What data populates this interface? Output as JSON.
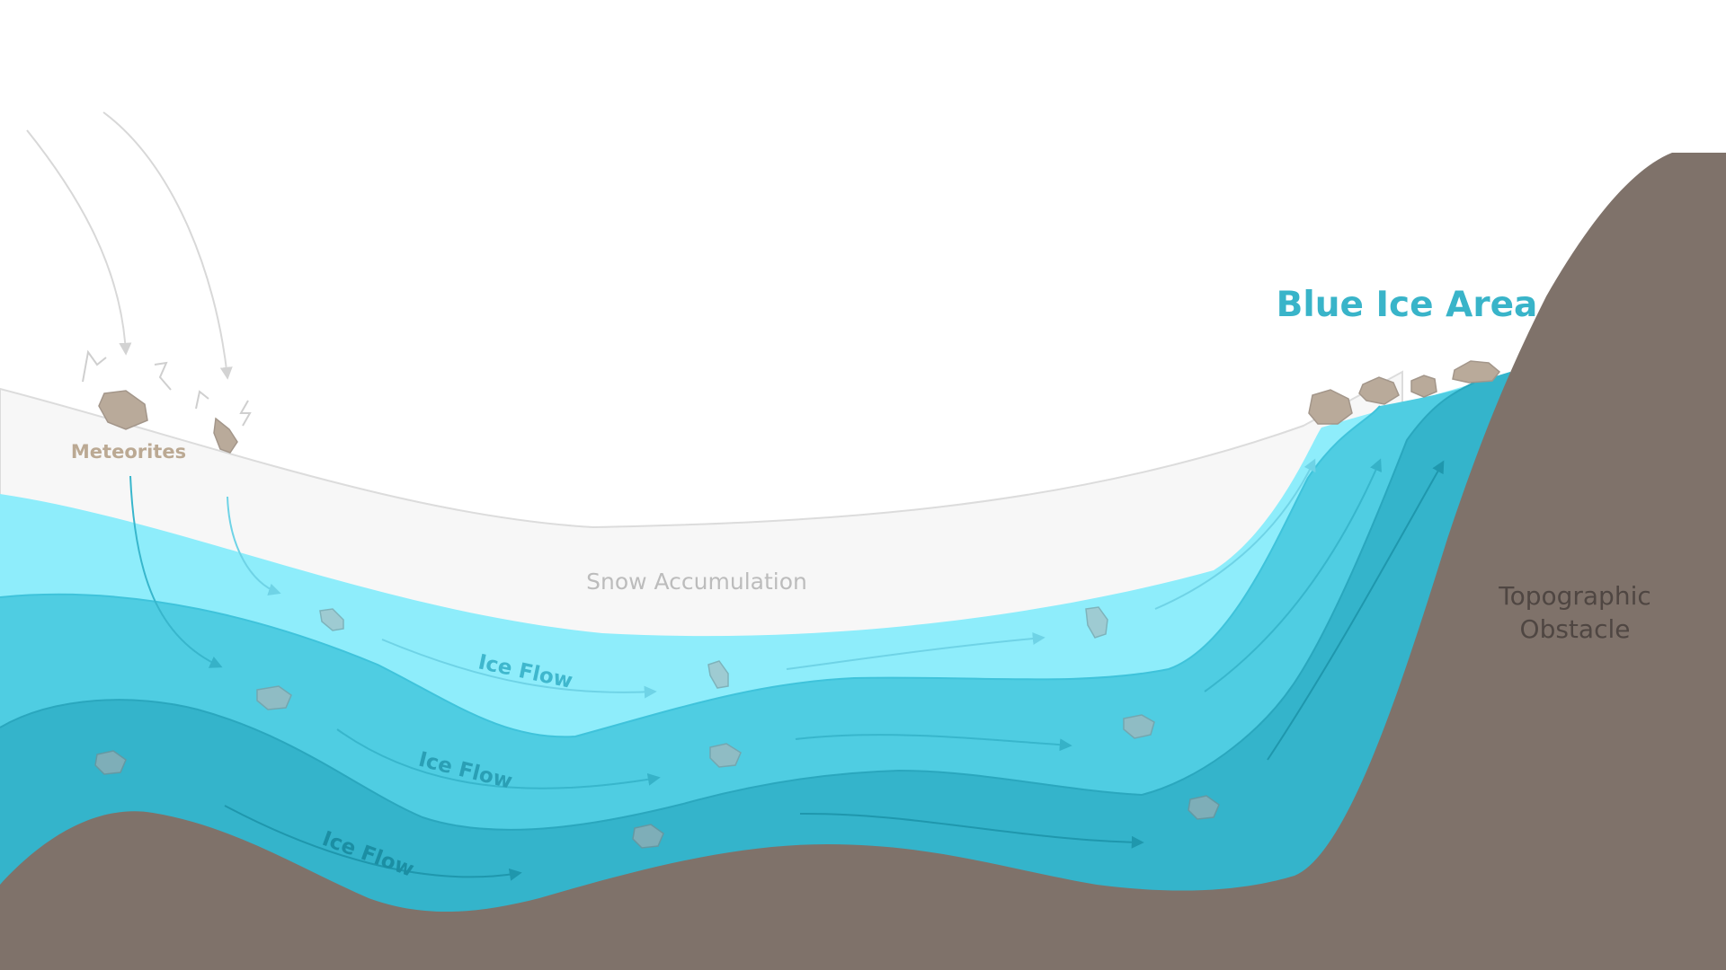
{
  "labels": {
    "meteorites": "Meteorites",
    "snow_accumulation": "Snow Accumulation",
    "ice_flow_1": "Ice Flow",
    "ice_flow_2": "Ice Flow",
    "ice_flow_3": "Ice Flow",
    "blue_ice_area": "Blue Ice Area",
    "topographic_obstacle_line1": "Topographic",
    "topographic_obstacle_line2": "Obstacle"
  },
  "colors": {
    "snow": "#f7f7f7",
    "ice_light": "#8eedfb",
    "ice_mid": "#4fcde2",
    "ice_deep": "#34b4cb",
    "rock": "#7f726a",
    "meteorite": "#b9aa9a",
    "blue_ice_label": "#39b4c9",
    "meteor_label": "#bba993",
    "snow_label": "#bcbcbc",
    "topo_label": "#4f4642",
    "arrow_sky": "#d8d8d8"
  }
}
